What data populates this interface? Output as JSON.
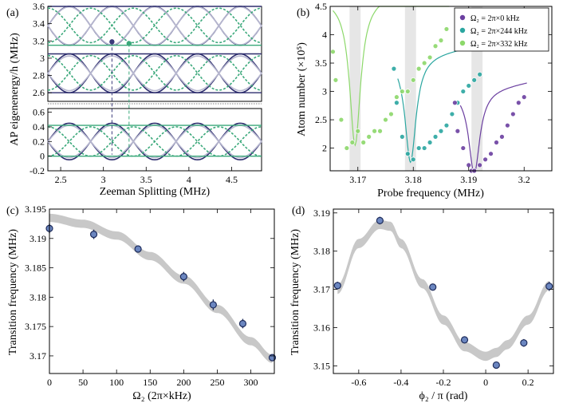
{
  "chart_data": [
    {
      "panel": "(a)",
      "type": "line",
      "title": "",
      "xlabel": "Zeeman Splitting (MHz)",
      "ylabel": "AP eigenenergy/h (MHz)",
      "xticks": [
        "2.5",
        "3",
        "3.5",
        "4",
        "4.5"
      ],
      "yticks_upper": [
        "2.6",
        "2.8",
        "3",
        "3.2",
        "3.4",
        "3.6"
      ],
      "yticks_lower": [
        "-0.2",
        "0",
        "0.2",
        "0.4",
        "0.6"
      ],
      "xlim": [
        2.35,
        4.85
      ],
      "ylim_upper": [
        2.5,
        3.6
      ],
      "ylim_lower": [
        -0.2,
        0.65
      ],
      "series": [
        {
          "name": "uncoupled (light)",
          "color": "#b8b8d0"
        },
        {
          "name": "coupled (dark)",
          "color": "#2e2e6e"
        },
        {
          "name": "dressed (green dashed)",
          "color": "#3aa87a"
        }
      ],
      "markers": [
        {
          "x": 3.1,
          "y": 3.19,
          "color": "#3a3a7a"
        },
        {
          "x": 3.3,
          "y": 3.17,
          "color": "#3aa87a"
        }
      ]
    },
    {
      "panel": "(b)",
      "type": "scatter",
      "xlabel": "Probe frequency (MHz)",
      "ylabel": "Atom number (×10⁵)",
      "xticks": [
        "3.17",
        "3.18",
        "3.19",
        "3.2"
      ],
      "yticks": [
        "2",
        "2.5",
        "3",
        "3.5",
        "4",
        "4.5"
      ],
      "xlim": [
        3.165,
        3.205
      ],
      "ylim": [
        1.6,
        4.5
      ],
      "shaded_bands": [
        [
          3.1685,
          3.1705
        ],
        [
          3.1785,
          3.1805
        ],
        [
          3.1905,
          3.1925
        ]
      ],
      "legend": [
        {
          "label": "Ω₂ = 2π×0 kHz",
          "color": "#6b3fa0"
        },
        {
          "label": "Ω₂ = 2π×244 kHz",
          "color": "#2aa6a0"
        },
        {
          "label": "Ω₂ = 2π×332 kHz",
          "color": "#8cd86a"
        }
      ],
      "series": [
        {
          "name": "Ω₂ = 2π×332 kHz",
          "color": "#8cd86a",
          "x": [
            3.1655,
            3.166,
            3.167,
            3.168,
            3.169,
            3.17,
            3.171,
            3.172,
            3.173,
            3.174,
            3.175,
            3.176,
            3.177,
            3.178,
            3.179,
            3.18,
            3.181,
            3.182,
            3.183,
            3.184,
            3.185,
            3.186
          ],
          "y": [
            3.7,
            3.2,
            2.5,
            2.0,
            2.1,
            2.3,
            2.1,
            2.2,
            2.3,
            2.3,
            2.5,
            2.6,
            2.9,
            3.0,
            3.0,
            3.2,
            3.4,
            3.5,
            3.6,
            3.8,
            3.9,
            4.1
          ]
        },
        {
          "name": "Ω₂ = 2π×244 kHz",
          "color": "#2aa6a0",
          "x": [
            3.1765,
            3.177,
            3.178,
            3.179,
            3.18,
            3.181,
            3.182,
            3.183,
            3.184,
            3.185,
            3.186,
            3.187,
            3.188,
            3.189,
            3.19,
            3.191,
            3.192
          ],
          "y": [
            3.4,
            2.8,
            2.2,
            1.9,
            1.8,
            2.0,
            2.0,
            2.1,
            2.2,
            2.3,
            2.4,
            2.6,
            2.8,
            3.0,
            3.1,
            3.2,
            3.3
          ]
        },
        {
          "name": "Ω₂ = 2π×0 kHz",
          "color": "#6b3fa0",
          "x": [
            3.1875,
            3.188,
            3.189,
            3.19,
            3.1905,
            3.191,
            3.192,
            3.193,
            3.194,
            3.195,
            3.196,
            3.197,
            3.198,
            3.199,
            3.2
          ],
          "y": [
            2.8,
            2.3,
            2.0,
            1.7,
            1.6,
            1.6,
            1.7,
            1.8,
            1.9,
            2.1,
            2.2,
            2.4,
            2.6,
            2.8,
            2.9
          ]
        }
      ]
    },
    {
      "panel": "(c)",
      "type": "scatter",
      "xlabel": "Ω₂ (2π×kHz)",
      "ylabel": "Transition frequency (MHz)",
      "xticks": [
        "0",
        "50",
        "100",
        "150",
        "200",
        "250",
        "300"
      ],
      "yticks": [
        "3.17",
        "3.175",
        "3.18",
        "3.185",
        "3.19",
        "3.195"
      ],
      "xlim": [
        0,
        335
      ],
      "ylim": [
        3.167,
        3.195
      ],
      "series": [
        {
          "name": "data",
          "color": "#6b86c0",
          "x": [
            0,
            66,
            132,
            200,
            244,
            288,
            332
          ],
          "y": [
            3.1917,
            3.1907,
            3.1882,
            3.1835,
            3.1787,
            3.1755,
            3.1697
          ],
          "err": [
            0.0008,
            0.0008,
            0.0006,
            0.0008,
            0.0009,
            0.0008,
            0.0006
          ]
        }
      ],
      "band": {
        "x": [
          0,
          50,
          100,
          150,
          200,
          250,
          300,
          332
        ],
        "y": [
          3.1935,
          3.1925,
          3.1905,
          3.187,
          3.183,
          3.178,
          3.1725,
          3.1695
        ],
        "halfwidth": 0.0007
      }
    },
    {
      "panel": "(d)",
      "type": "scatter",
      "xlabel": "ϕ₂ / π (rad)",
      "ylabel": "Transition frequency (MHz)",
      "xticks": [
        "-0.6",
        "-0.4",
        "-0.2",
        "0",
        "0.2"
      ],
      "yticks": [
        "3.15",
        "3.16",
        "3.17",
        "3.18",
        "3.19"
      ],
      "xlim": [
        -0.72,
        0.32
      ],
      "ylim": [
        3.148,
        3.191
      ],
      "series": [
        {
          "name": "data",
          "color": "#6b86c0",
          "x": [
            -0.7,
            -0.5,
            -0.25,
            -0.1,
            0.05,
            0.18,
            0.3
          ],
          "y": [
            3.171,
            3.188,
            3.1706,
            3.1568,
            3.1502,
            3.156,
            3.1708
          ],
          "err": [
            0.001,
            0.001,
            0.0008,
            0.0006,
            0.0008,
            0.001,
            0.0012
          ]
        }
      ],
      "band": {
        "x": [
          -0.7,
          -0.6,
          -0.5,
          -0.45,
          -0.4,
          -0.3,
          -0.2,
          -0.1,
          0,
          0.05,
          0.1,
          0.2,
          0.3
        ],
        "y": [
          3.17,
          3.182,
          3.187,
          3.1865,
          3.182,
          3.1715,
          3.162,
          3.155,
          3.1525,
          3.1535,
          3.1555,
          3.162,
          3.171
        ],
        "halfwidth": 0.0012
      }
    }
  ]
}
